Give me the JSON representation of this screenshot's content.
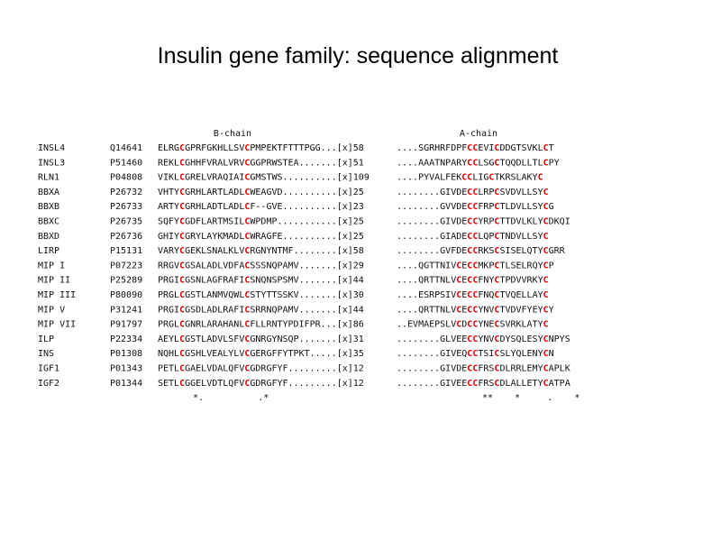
{
  "title": "Insulin gene family: sequence alignment",
  "headers": {
    "b_chain": "B-chain",
    "a_chain": "A-chain"
  },
  "rows": [
    [
      "INSL4",
      "Q14641",
      "ELRGCGPRFGKHLLSVCPMPEKTFTTTPGG...[x]58",
      "....SGRHRFDPFCCEVICDDGTSVKLCT"
    ],
    [
      "INSL3",
      "P51460",
      "REKLCGHHFVRALVRVCGGPRWSTEA.......[x]51",
      "....AAATNPARYCCLSGCTQQDLLTLCPY"
    ],
    [
      "RLN1",
      "P04808",
      "VIKLCGRELVRAQIAICGMSTWS..........[x]109",
      "....PYVALFEKCCLIGCTKRSLAKYC"
    ],
    [
      "BBXA",
      "P26732",
      "VHTYCGRHLARTLADLCWEAGVD..........[x]25",
      "........GIVDECCLRPCSVDVLLSYC"
    ],
    [
      "BBXB",
      "P26733",
      "ARTYCGRHLADTLADLCF--GVE..........[x]23",
      "........GVVDECCFRPCTLDVLLSYCG"
    ],
    [
      "BBXC",
      "P26735",
      "SQFYCGDFLARTMSILCWPDMP...........[x]25",
      "........GIVDECCYRPCTTDVLKLYCDKQI"
    ],
    [
      "BBXD",
      "P26736",
      "GHIYCGRYLAYKMADLCWRAGFE..........[x]25",
      "........GIADECCLQPCTNDVLLSYC"
    ],
    [
      "LIRP",
      "P15131",
      "VARYCGEKLSNALKLVCRGNYNTMF........[x]58",
      "........GVFDECCRKSCSISELQTYCGRR"
    ],
    [
      "MIP I",
      "P07223",
      "RRGVCGSALADLVDFACSSSNQPAMV.......[x]29",
      "....QGTTNIVCECCMKPCTLSELRQYCP"
    ],
    [
      "MIP II",
      "P25289",
      "PRGICGSNLAGFRAFICSNQNSPSMV.......[x]44",
      "....QRTTNLVCECCFNYCTPDVVRKYC"
    ],
    [
      "MIP III",
      "P80090",
      "PRGLCGSTLANMVQWLCSTYTTSSKV.......[x]30",
      "....ESRPSIVCECCFNQCTVQELLAYC"
    ],
    [
      "MIP V",
      "P31241",
      "PRGICGSDLADLRAFICSRRNQPAMV.......[x]44",
      "....QRTTNLVCECCYNVCTVDVFYEYCY"
    ],
    [
      "MIP VII",
      "P91797",
      "PRGLCGNRLARAHANLCFLLRNTYPDIFPR...[x]86",
      "..EVMAEPSLVCDCCYNECSVRKLATYC"
    ],
    [
      "ILP",
      "P22334",
      "AEYLCGSTLADVLSFVCGNRGYNSQP.......[x]31",
      "........GLVEECCYNVCDYSQLESYCNPYS"
    ],
    [
      "INS",
      "P01308",
      "NQHLCGSHLVEALYLVCGERGFFYTPKT.....[x]35",
      "........GIVEQCCTSICSLYQLENYCN"
    ],
    [
      "IGF1",
      "P01343",
      "PETLCGAELVDALQFVCGDRGFYF.........[x]12",
      "........GIVDECCFRSCDLRRLEMYCAPLK"
    ],
    [
      "IGF2",
      "P01344",
      "SETLCGGELVDTLQFVCGDRGFYF.........[x]12",
      "........GIVEECCFRSCDLALLETYCATPA"
    ]
  ],
  "consensus": {
    "b_chain": "*.          .*",
    "a_chain": "**    *     .    *"
  }
}
